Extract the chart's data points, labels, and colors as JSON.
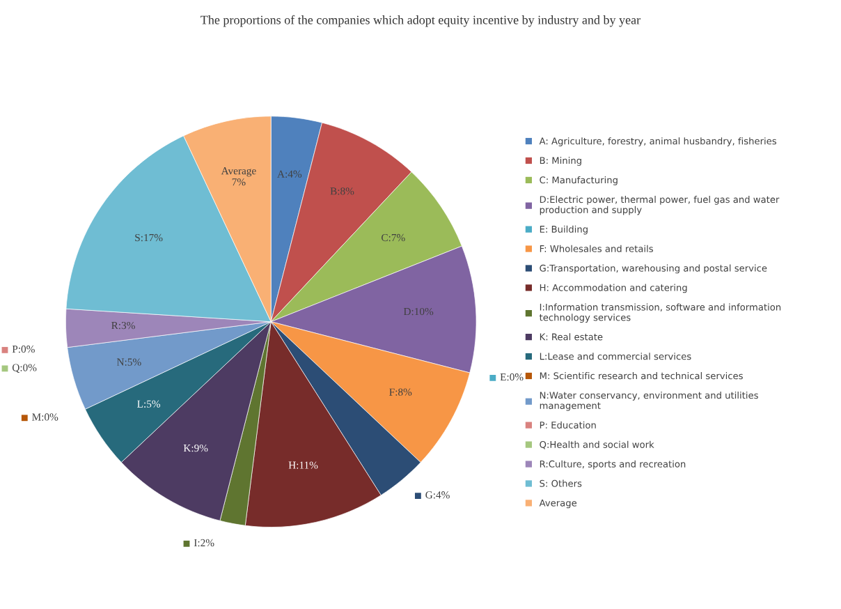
{
  "chart_data": {
    "type": "pie",
    "title": "The proportions of the companies which adopt equity incentive by industry and by year",
    "categories": [
      "A: Agriculture, forestry, animal husbandry, fisheries",
      "B: Mining",
      "C: Manufacturing",
      "D:Electric power, thermal power, fuel gas and water\nproduction and supply",
      "E: Building",
      "F: Wholesales and retails",
      "G:Transportation, warehousing and postal service",
      "H: Accommodation and catering",
      "I:Information transmission, software and information\ntechnology services",
      "K: Real estate",
      "L:Lease and commercial services",
      "M: Scientific research and technical services",
      "N:Water conservancy, environment and utilities\nmanagement",
      "P: Education",
      "Q:Health and social work",
      "R:Culture, sports and recreation",
      "S: Others",
      "Average"
    ],
    "values": [
      4,
      8,
      7,
      10,
      0,
      8,
      4,
      11,
      2,
      9,
      5,
      0,
      5,
      0,
      0,
      3,
      17,
      7
    ],
    "value_labels": [
      "A:4%",
      "B:8%",
      "C:7%",
      "D:10%",
      "E:0%",
      "F:8%",
      "G:4%",
      "H:11%",
      "I:2%",
      "K:9%",
      "L:5%",
      "M:0%",
      "N:5%",
      "P:0%",
      "Q:0%",
      "R:3%",
      "S:17%",
      "Average\n7%"
    ],
    "colors": [
      "#4f81bd",
      "#c0504d",
      "#9bbb59",
      "#8064a2",
      "#4bacc6",
      "#f79646",
      "#2c4d75",
      "#772c2a",
      "#5f7530",
      "#4d3b62",
      "#276a7c",
      "#b65708",
      "#729aca",
      "#d9827f",
      "#a5c77f",
      "#9d86b9",
      "#6fbdd3",
      "#f9b074"
    ],
    "legend": "right"
  }
}
